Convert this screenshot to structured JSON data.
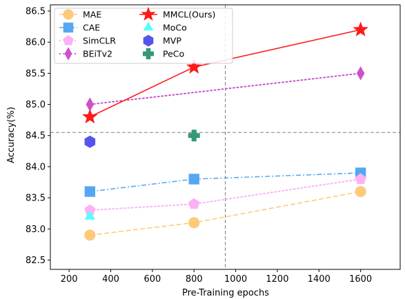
{
  "chart_data": {
    "type": "line",
    "title": "",
    "xlabel": "Pre-Training epochs",
    "ylabel": "Accuracy(%)",
    "xlim": [
      110,
      1790
    ],
    "ylim": [
      82.35,
      86.6
    ],
    "xticks": [
      200,
      400,
      600,
      800,
      1000,
      1200,
      1400,
      1600
    ],
    "yticks": [
      82.5,
      83.0,
      83.5,
      84.0,
      84.5,
      85.0,
      85.5,
      86.0,
      86.5
    ],
    "grid": false,
    "legend_position": "top-left",
    "reference_lines": {
      "vertical_x": 950,
      "horizontal_y": 84.55,
      "color": "#808080",
      "style": "dashed"
    },
    "series": [
      {
        "name": "MAE",
        "x": [
          300,
          800,
          1600
        ],
        "y": [
          82.9,
          83.1,
          83.6
        ],
        "color": "#fdca7b",
        "marker": "circle",
        "line": "dashed"
      },
      {
        "name": "CAE",
        "x": [
          300,
          800,
          1600
        ],
        "y": [
          83.6,
          83.8,
          83.9
        ],
        "color": "#55a8f0",
        "marker": "square",
        "line": "dashdot"
      },
      {
        "name": "SimCLR",
        "x": [
          300,
          800,
          1600
        ],
        "y": [
          83.3,
          83.4,
          83.8
        ],
        "color": "#fcb1f5",
        "marker": "pentagon",
        "line": "dotted"
      },
      {
        "name": "BEiTv2",
        "x": [
          300,
          1600
        ],
        "y": [
          85.0,
          85.5
        ],
        "color": "#cc52cc",
        "marker": "diamond",
        "line": "dotted"
      },
      {
        "name": "MMCL(Ours)",
        "x": [
          300,
          800,
          1600
        ],
        "y": [
          84.8,
          85.6,
          86.2
        ],
        "color": "#ff1a1a",
        "marker": "star",
        "line": "solid"
      },
      {
        "name": "MoCo",
        "x": [
          300
        ],
        "y": [
          83.2
        ],
        "color": "#55ffff",
        "marker": "triangle",
        "line": "none"
      },
      {
        "name": "MVP",
        "x": [
          300
        ],
        "y": [
          84.4
        ],
        "color": "#5555ee",
        "marker": "hexagon",
        "line": "none"
      },
      {
        "name": "PeCo",
        "x": [
          800
        ],
        "y": [
          84.5
        ],
        "color": "#339977",
        "marker": "plus",
        "line": "none"
      }
    ]
  }
}
